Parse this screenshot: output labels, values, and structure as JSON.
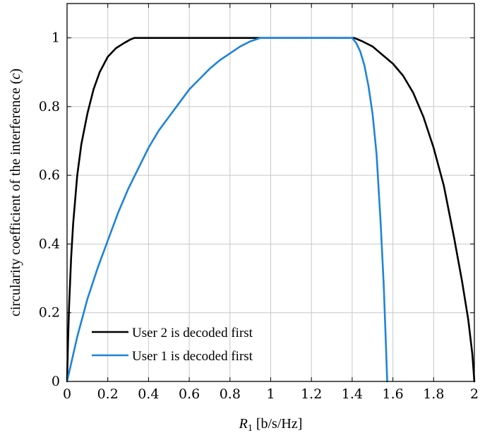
{
  "chart_data": {
    "type": "line",
    "title": "",
    "xlabel": {
      "symbol": "R",
      "subscript": "1",
      "unit": "[b/s/Hz]"
    },
    "ylabel": {
      "text": "circularity coefficient of the interference (",
      "symbol": "c",
      "close": ")"
    },
    "xlim": [
      0,
      2
    ],
    "ylim": [
      0,
      1.1
    ],
    "x_ticks": [
      "0",
      "0.2",
      "0.4",
      "0.6",
      "0.8",
      "1",
      "1.2",
      "1.4",
      "1.6",
      "1.8",
      "2"
    ],
    "y_ticks": [
      "0",
      "0.2",
      "0.4",
      "0.6",
      "0.8",
      "1"
    ],
    "grid": true,
    "legend_position": "bottom-left",
    "series": [
      {
        "name": "User 2 is decoded first",
        "color": "#000000",
        "x": [
          0,
          0.005,
          0.01,
          0.02,
          0.03,
          0.05,
          0.07,
          0.1,
          0.13,
          0.16,
          0.2,
          0.24,
          0.28,
          0.31,
          0.33,
          0.34,
          0.4,
          0.6,
          0.8,
          1.0,
          1.2,
          1.41,
          1.45,
          1.5,
          1.55,
          1.6,
          1.65,
          1.7,
          1.75,
          1.8,
          1.85,
          1.9,
          1.94,
          1.97,
          1.99,
          2.0
        ],
        "y": [
          0,
          0.12,
          0.22,
          0.36,
          0.46,
          0.6,
          0.69,
          0.78,
          0.85,
          0.9,
          0.945,
          0.97,
          0.985,
          0.995,
          1.0,
          1.0,
          1.0,
          1.0,
          1.0,
          1.0,
          1.0,
          1.0,
          0.99,
          0.975,
          0.95,
          0.925,
          0.89,
          0.84,
          0.77,
          0.68,
          0.57,
          0.42,
          0.29,
          0.18,
          0.08,
          0
        ]
      },
      {
        "name": "User 1 is decoded first",
        "color": "#1f84d8",
        "x": [
          0,
          0.05,
          0.1,
          0.15,
          0.2,
          0.25,
          0.3,
          0.35,
          0.4,
          0.45,
          0.5,
          0.55,
          0.6,
          0.65,
          0.7,
          0.75,
          0.8,
          0.85,
          0.9,
          0.95,
          1.0,
          1.2,
          1.4,
          1.42,
          1.44,
          1.46,
          1.48,
          1.5,
          1.52,
          1.54,
          1.555,
          1.565,
          1.572
        ],
        "y": [
          0,
          0.13,
          0.24,
          0.33,
          0.41,
          0.49,
          0.56,
          0.62,
          0.68,
          0.73,
          0.77,
          0.81,
          0.85,
          0.88,
          0.91,
          0.935,
          0.955,
          0.975,
          0.99,
          1.0,
          1.0,
          1.0,
          1.0,
          0.985,
          0.96,
          0.92,
          0.86,
          0.78,
          0.66,
          0.46,
          0.28,
          0.12,
          0
        ]
      }
    ]
  }
}
